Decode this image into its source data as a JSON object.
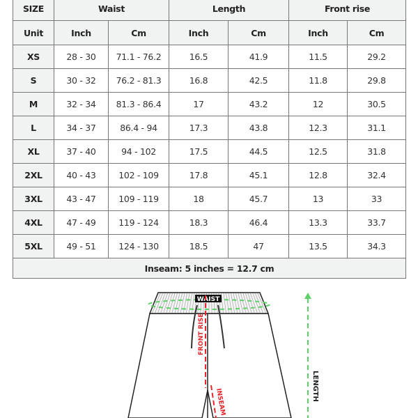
{
  "table": {
    "header_groups": [
      "SIZE",
      "Waist",
      "Length",
      "Front rise"
    ],
    "unit_row": [
      "Unit",
      "Inch",
      "Cm",
      "Inch",
      "Cm",
      "Inch",
      "Cm"
    ],
    "rows": [
      [
        "XS",
        "28 - 30",
        "71.1 - 76.2",
        "16.5",
        "41.9",
        "11.5",
        "29.2"
      ],
      [
        "S",
        "30 - 32",
        "76.2 - 81.3",
        "16.8",
        "42.5",
        "11.8",
        "29.8"
      ],
      [
        "M",
        "32 - 34",
        "81.3 - 86.4",
        "17",
        "43.2",
        "12",
        "30.5"
      ],
      [
        "L",
        "34 - 37",
        "86.4 - 94",
        "17.3",
        "43.8",
        "12.3",
        "31.1"
      ],
      [
        "XL",
        "37 - 40",
        "94 - 102",
        "17.5",
        "44.5",
        "12.5",
        "31.8"
      ],
      [
        "2XL",
        "40 - 43",
        "102 - 109",
        "17.8",
        "45.1",
        "12.8",
        "32.4"
      ],
      [
        "3XL",
        "43 - 47",
        "109 - 119",
        "18",
        "45.7",
        "13",
        "33"
      ],
      [
        "4XL",
        "47 - 49",
        "119 - 124",
        "18.3",
        "46.4",
        "13.3",
        "33.7"
      ],
      [
        "5XL",
        "49 - 51",
        "124 - 130",
        "18.5",
        "47",
        "13.5",
        "34.3"
      ]
    ],
    "footer": "Inseam: 5 inches = 12.7 cm"
  },
  "diagram": {
    "waist_label": "WAIST",
    "front_rise_label": "FRONT RISE",
    "inseam_label": "INSEAM",
    "length_label": "LENGTH",
    "colors": {
      "measure_red": "#e8262b",
      "measure_green": "#5fd068",
      "header_gray": "#f1f2f2"
    }
  }
}
